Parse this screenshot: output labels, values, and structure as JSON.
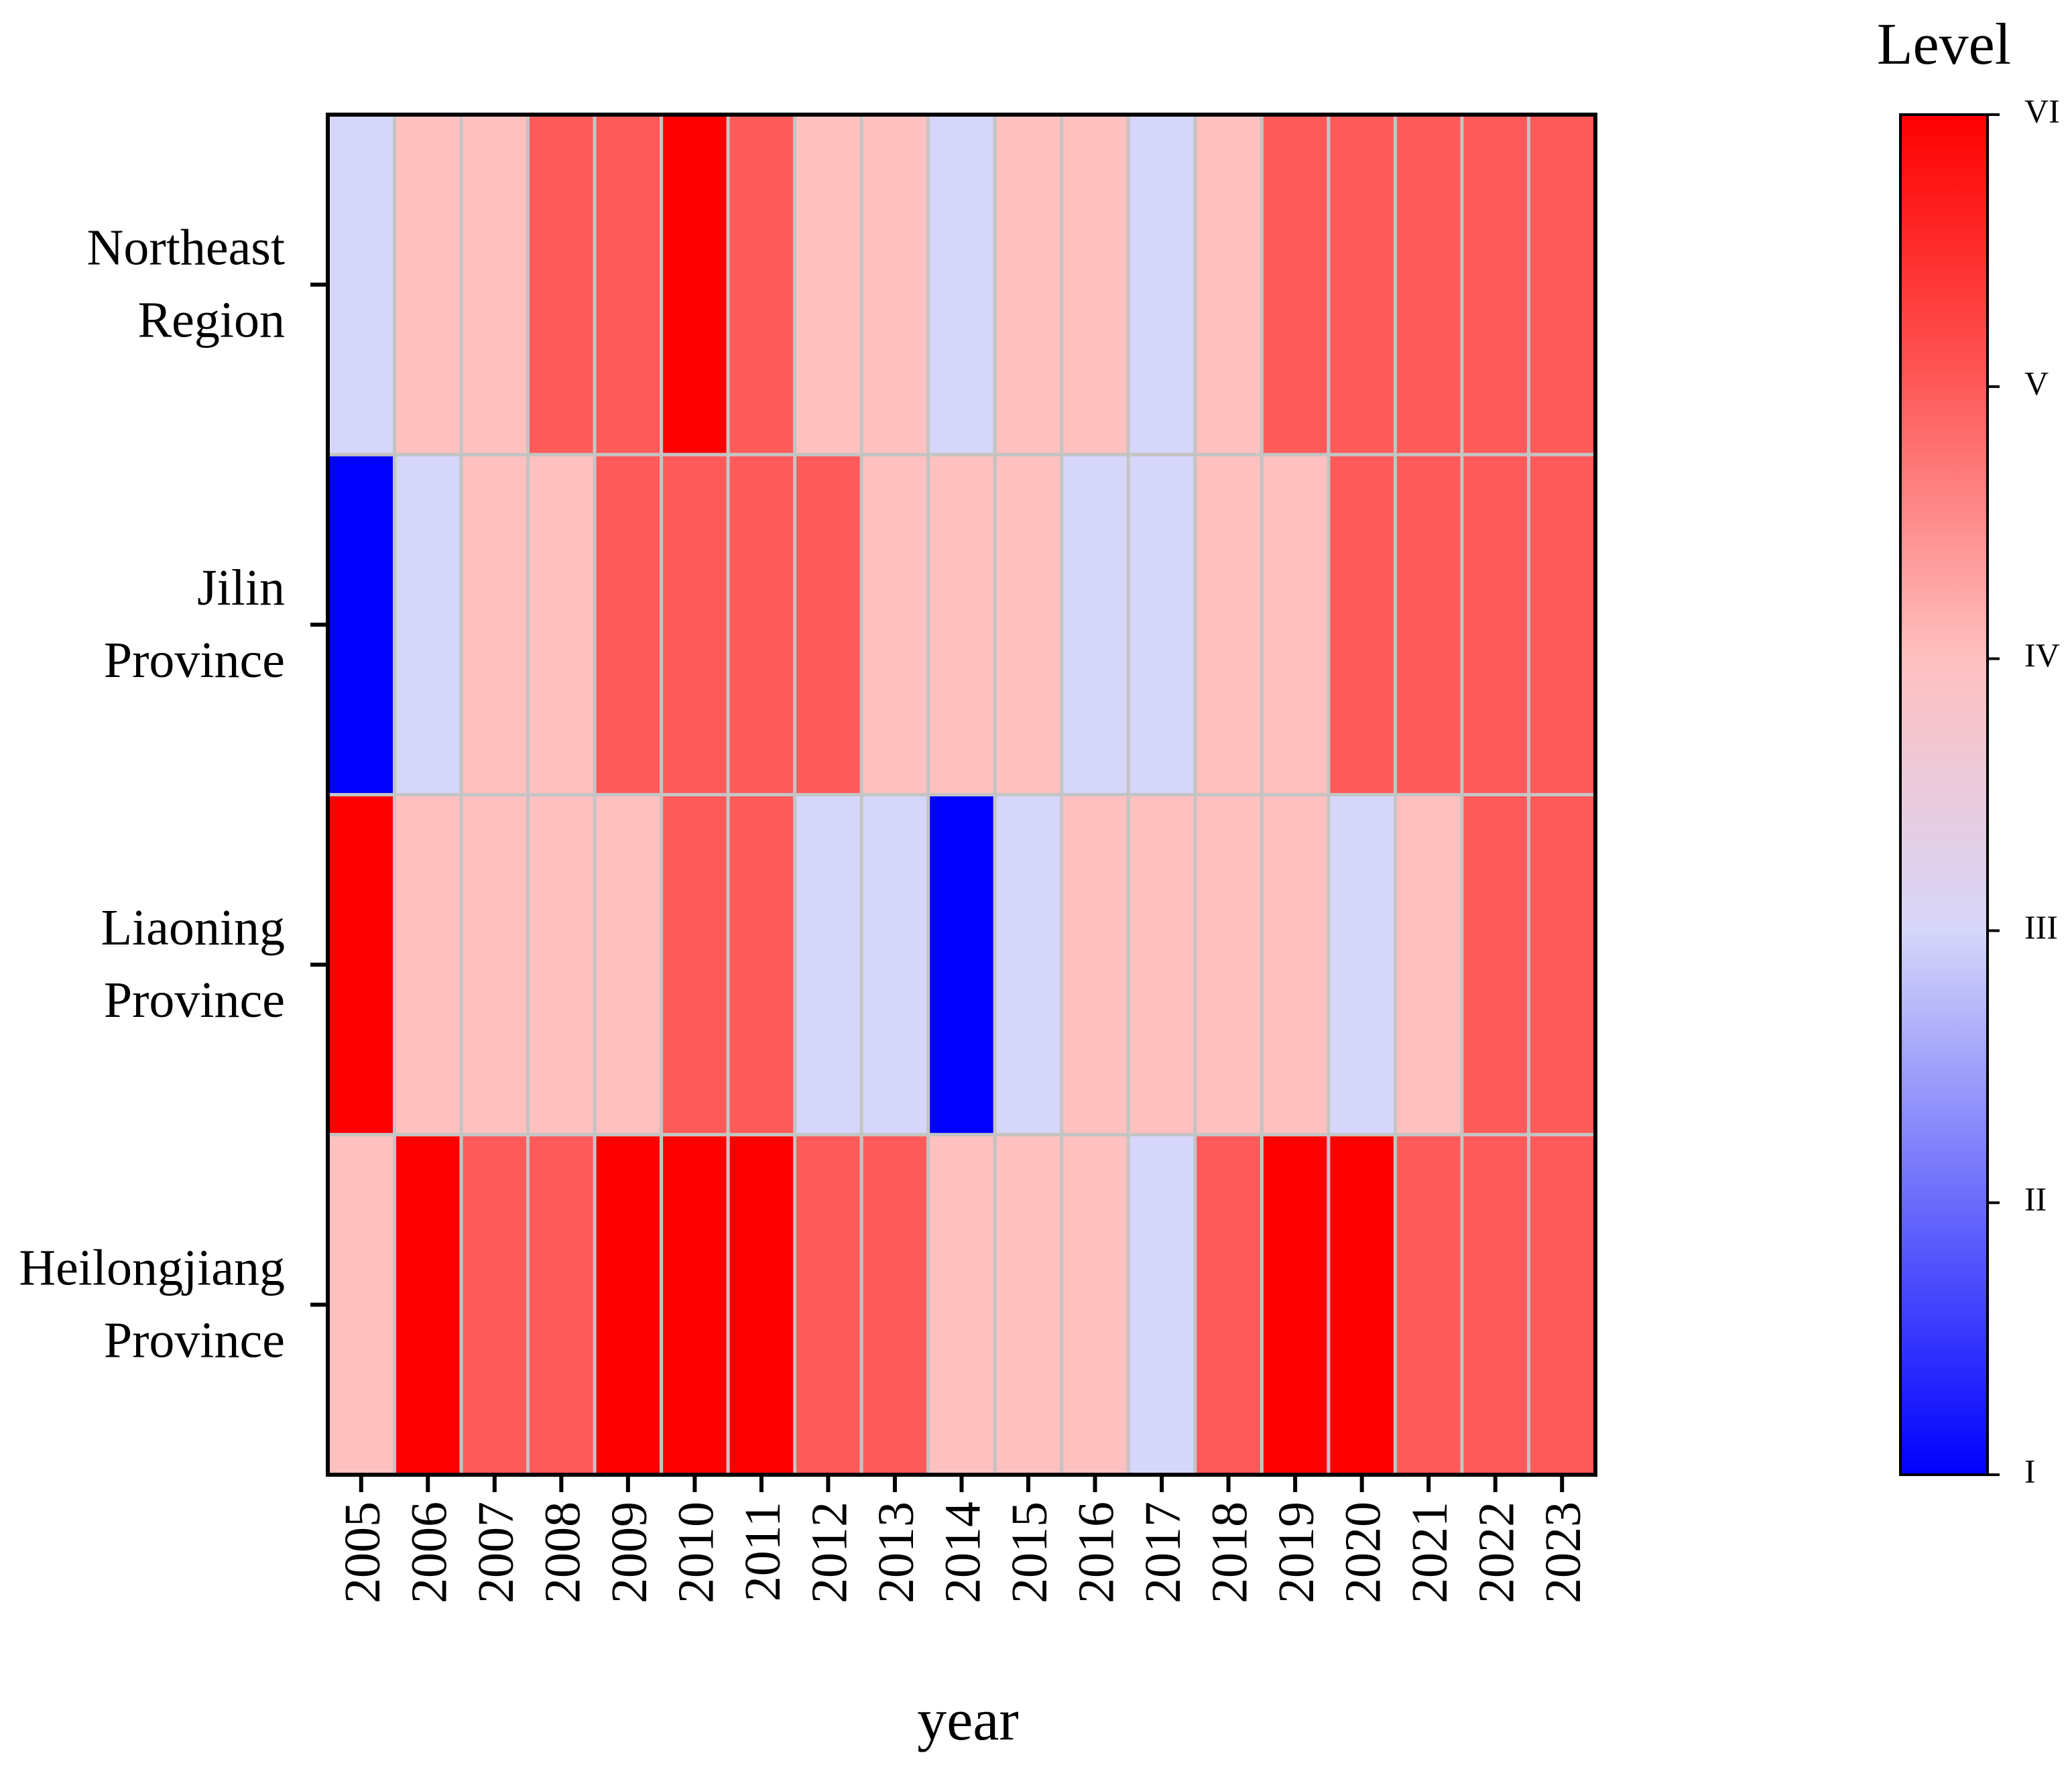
{
  "chart_data": {
    "type": "heatmap",
    "xlabel": "year",
    "x": [
      "2005",
      "2006",
      "2007",
      "2008",
      "2009",
      "2010",
      "2011",
      "2012",
      "2013",
      "2014",
      "2015",
      "2016",
      "2017",
      "2018",
      "2019",
      "2020",
      "2021",
      "2022",
      "2023"
    ],
    "rows": [
      [
        "Northeast",
        "Region"
      ],
      [
        "Jilin",
        "Province"
      ],
      [
        "Liaoning",
        "Province"
      ],
      [
        "Heilongjiang",
        "Province"
      ]
    ],
    "values": [
      [
        3,
        4,
        4,
        5,
        5,
        6,
        5,
        4,
        4,
        3,
        4,
        4,
        3,
        4,
        5,
        5,
        5,
        5,
        5
      ],
      [
        1,
        3,
        4,
        4,
        5,
        5,
        5,
        5,
        4,
        4,
        4,
        3,
        3,
        4,
        4,
        5,
        5,
        5,
        5
      ],
      [
        6,
        4,
        4,
        4,
        4,
        5,
        5,
        3,
        3,
        1,
        3,
        4,
        4,
        4,
        4,
        3,
        4,
        5,
        5
      ],
      [
        4,
        6,
        5,
        5,
        6,
        6,
        6,
        5,
        5,
        4,
        4,
        4,
        3,
        5,
        6,
        6,
        5,
        5,
        5
      ]
    ],
    "colorbar_title": "Level",
    "clim": [
      1,
      6
    ],
    "cticks": [
      {
        "value": 1,
        "label": "I"
      },
      {
        "value": 2,
        "label": "II"
      },
      {
        "value": 3,
        "label": "III"
      },
      {
        "value": 4,
        "label": "IV"
      },
      {
        "value": 5,
        "label": "V"
      },
      {
        "value": 6,
        "label": "VI"
      }
    ],
    "colorscale": [
      {
        "value": 1,
        "color": "#0000ff"
      },
      {
        "value": 3,
        "color": "#d6d6fa"
      },
      {
        "value": 4,
        "color": "#ffc0c0"
      },
      {
        "value": 5,
        "color": "#ff5a5a"
      },
      {
        "value": 6,
        "color": "#ff0000"
      }
    ],
    "grid_color": "#c4c4c4"
  }
}
